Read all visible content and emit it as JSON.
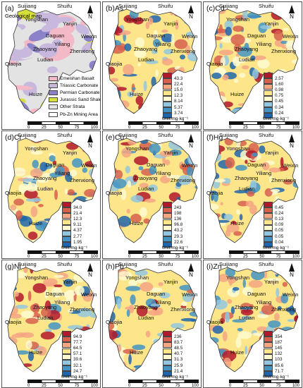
{
  "places": {
    "suijiang": "Suijiang",
    "shuifu": "Shuifu",
    "yongshan": "Yongshan",
    "yanjin": "Yanjin",
    "daguan": "Daguan",
    "yiliang": "Yiliang",
    "weixin": "Weixin",
    "zhaoyang": "Zhaoyang",
    "zhenxiong": "Zhenxiong",
    "ludian": "Ludian",
    "qiaojia": "Qiaojia",
    "huize": "Huize"
  },
  "north_label": "N",
  "unit_label": "Unit:mg·kg⁻¹",
  "scale": {
    "ticks": [
      "0",
      "25",
      "50",
      "75",
      "100"
    ],
    "unit": "Kilometer"
  },
  "geology": {
    "label": "(a)",
    "title": "Geological map",
    "legend": [
      {
        "name": "Emeishan Basalt",
        "color": "#f3b9c6"
      },
      {
        "name": "Triassic Carbonate",
        "color": "#c9b8de"
      },
      {
        "name": "Permian Carbonate",
        "color": "#8b82c9"
      },
      {
        "name": "Jurassic Sand Shale",
        "color": "#d6df3c"
      },
      {
        "name": "Other Strata",
        "color": "#e3e3e3"
      },
      {
        "name": "Pb-Zn Mining Area",
        "color": "#ffffff"
      }
    ]
  },
  "legend_colors": [
    "#b2182b",
    "#d6604d",
    "#f4a582",
    "#fde68a",
    "#fef9d0",
    "#92c5de",
    "#4393c3",
    "#2166ac"
  ],
  "panels": [
    {
      "label": "(b)As",
      "values": [
        "43.3",
        "22.4",
        "15.0",
        "12.3",
        "8.14",
        "5.37",
        "3.74"
      ]
    },
    {
      "label": "(c)Cd",
      "values": [
        "2.57",
        "1.60",
        "0.98",
        "0.75",
        "0.45",
        "0.34",
        "0.24"
      ]
    },
    {
      "label": "(d)Cr",
      "values": [
        "34.0",
        "21.4",
        "12.3",
        "9.11",
        "4.37",
        "2.77",
        "1.95"
      ]
    },
    {
      "label": "(e)Cu",
      "values": [
        "243",
        "198",
        "136",
        "96.8",
        "43.2",
        "29.3",
        "22.6"
      ]
    },
    {
      "label": "(f)Hg",
      "values": [
        "0.45",
        "0.24",
        "0.13",
        "0.09",
        "0.05",
        "0.05",
        "0.04"
      ]
    },
    {
      "label": "(g)Ni",
      "values": [
        "94.9",
        "77.7",
        "64.5",
        "57.1",
        "39.6",
        "32.1",
        "24.7"
      ]
    },
    {
      "label": "(h)Pb",
      "values": [
        "236",
        "83.7",
        "48.5",
        "40.7",
        "31.3",
        "25.9",
        "21.4"
      ]
    },
    {
      "label": "(i)Zn",
      "values": [
        "354",
        "187",
        "145",
        "132",
        "103",
        "85.6",
        "71.7"
      ]
    }
  ]
}
